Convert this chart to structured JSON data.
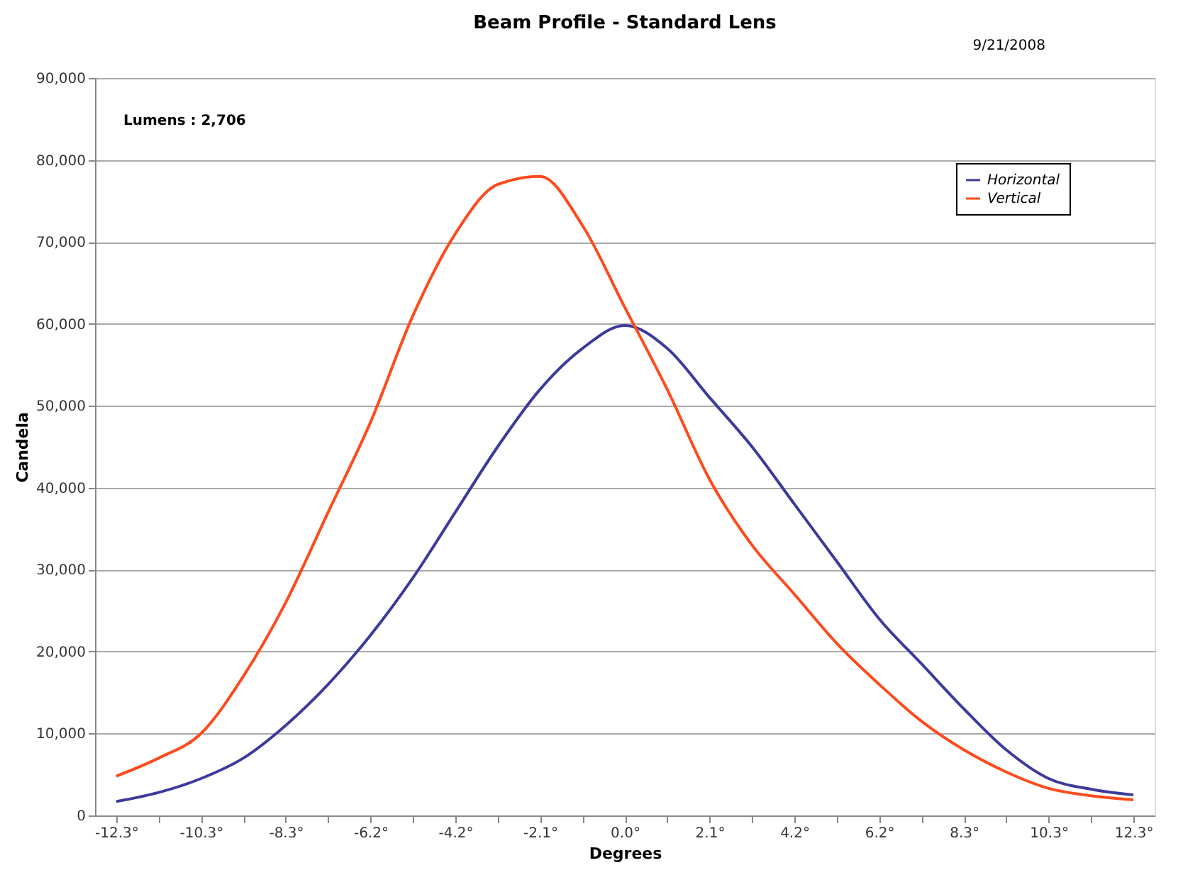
{
  "chart_data": {
    "type": "line",
    "title": "Beam Profile - Standard Lens",
    "xlabel": "Degrees",
    "ylabel": "Candela",
    "annotations": [
      "9/21/2008",
      "Lumens :   2,706"
    ],
    "categories": [
      "-12.3°",
      null,
      "-10.3°",
      null,
      "-8.3°",
      null,
      "-6.2°",
      null,
      "-4.2°",
      null,
      "-2.1°",
      null,
      "0.0°",
      null,
      "2.1°",
      null,
      "4.2°",
      null,
      "6.2°",
      null,
      "8.3°",
      null,
      "10.3°",
      null,
      "12.3°"
    ],
    "series": [
      {
        "name": "Horizontal",
        "color": "#3d3a9c",
        "values": [
          1700,
          2800,
          4500,
          7000,
          11000,
          16000,
          22000,
          29000,
          37000,
          45000,
          52000,
          57000,
          59800,
          57000,
          51000,
          45000,
          38000,
          31000,
          24000,
          18500,
          13000,
          8000,
          4500,
          3200,
          2500
        ]
      },
      {
        "name": "Vertical",
        "color": "#ff4a1c",
        "values": [
          4800,
          7000,
          10000,
          17000,
          26000,
          37000,
          48000,
          61000,
          71000,
          77000,
          78000,
          72000,
          62000,
          52000,
          41000,
          33000,
          27000,
          21000,
          16000,
          11500,
          8000,
          5300,
          3300,
          2400,
          1900
        ]
      }
    ],
    "ylim": [
      0,
      90000
    ],
    "yticks": [
      0,
      {
        "value": 10000,
        "label": "10,000"
      },
      {
        "value": 20000,
        "label": "20,000"
      },
      {
        "value": 30000,
        "label": "30,000"
      },
      {
        "value": 40000,
        "label": "40,000"
      },
      {
        "value": 50000,
        "label": "50,000"
      },
      {
        "value": 60000,
        "label": "60,000"
      },
      {
        "value": 70000,
        "label": "70,000"
      },
      {
        "value": 80000,
        "label": "80,000"
      },
      {
        "value": 90000,
        "label": "90,000"
      }
    ],
    "grid": "y",
    "legend": "top right",
    "marker": "none",
    "line_style": "solid"
  }
}
